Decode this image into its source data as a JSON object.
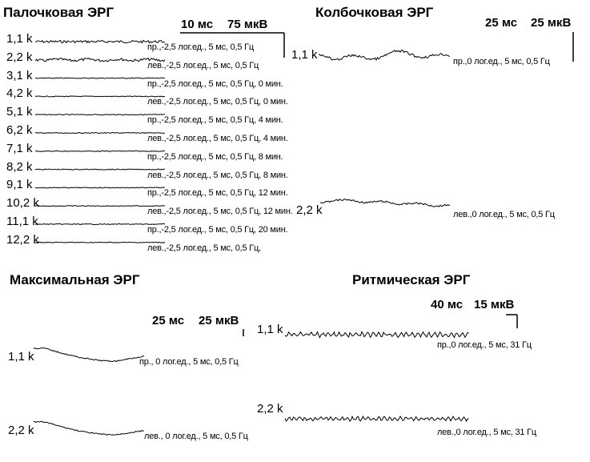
{
  "chart_data": [
    {
      "type": "line",
      "title": "Палочковая ЭРГ",
      "scale": {
        "time": "10 мс",
        "amplitude": "75 мкВ"
      },
      "series": [
        {
          "label": "1,1 k",
          "desc": "пр.,-2,5 лог.ед., 5 мс, 0,5 Гц"
        },
        {
          "label": "2,2 k",
          "desc": "лев.,-2,5 лог.ед., 5 мс, 0,5 Гц"
        },
        {
          "label": "3,1 k",
          "desc": "пр.,-2,5 лог.ед., 5 мс, 0,5 Гц, 0 мин."
        },
        {
          "label": "4,2 k",
          "desc": "лев.,-2,5 лог.ед., 5 мс, 0,5 Гц, 0 мин."
        },
        {
          "label": "5,1 k",
          "desc": "пр.,-2,5 лог.ед., 5 мс, 0,5 Гц, 4 мин."
        },
        {
          "label": "6,2 k",
          "desc": "лев.,-2,5 лог.ед., 5 мс, 0,5 Гц, 4 мин."
        },
        {
          "label": "7,1 k",
          "desc": "пр.,-2,5 лог.ед., 5 мс, 0,5 Гц, 8 мин."
        },
        {
          "label": "8,2 k",
          "desc": "лев.,-2,5 лог.ед., 5 мс, 0,5 Гц, 8 мин."
        },
        {
          "label": "9,1 k",
          "desc": "пр.,-2,5 лог.ед., 5 мс, 0,5 Гц, 12 мин."
        },
        {
          "label": "10,2 k",
          "desc": "лев.,-2,5 лог.ед., 5 мс, 0,5 Гц, 12 мин."
        },
        {
          "label": "11,1 k",
          "desc": "пр.,-2,5 лог.ед., 5 мс, 0,5 Гц, 20 мин."
        },
        {
          "label": "12,2 k",
          "desc": "лев.,-2,5 лог.ед., 5 мс, 0,5 Гц,"
        }
      ]
    },
    {
      "type": "line",
      "title": "Колбочковая ЭРГ",
      "scale": {
        "time": "25 мс",
        "amplitude": "25 мкВ"
      },
      "series": [
        {
          "label": "1,1 k",
          "desc": "пр.,0 лог.ед., 5 мс, 0,5 Гц"
        },
        {
          "label": "2,2 k",
          "desc": "лев.,0 лог.ед., 5 мс, 0,5 Гц"
        }
      ]
    },
    {
      "type": "line",
      "title": "Максимальная ЭРГ",
      "scale": {
        "time": "25 мс",
        "amplitude": "25 мкВ"
      },
      "series": [
        {
          "label": "1,1 k",
          "desc": "пр., 0 лог.ед., 5 мс, 0,5 Гц"
        },
        {
          "label": "2,2 k",
          "desc": "лев., 0 лог.ед., 5 мс, 0,5 Гц"
        }
      ]
    },
    {
      "type": "line",
      "title": "Ритмическая ЭРГ",
      "scale": {
        "time": "40 мс",
        "amplitude": "15 мкВ"
      },
      "series": [
        {
          "label": "1,1 k",
          "desc": "пр.,0 лог.ед., 5 мс, 31 Гц"
        },
        {
          "label": "2,2 k",
          "desc": "лев.,0 лог.ед., 5 мс, 31 Гц"
        }
      ]
    }
  ]
}
